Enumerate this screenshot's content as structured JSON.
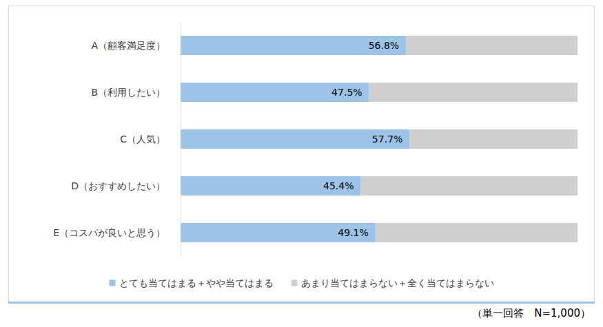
{
  "chart_data": {
    "type": "bar",
    "orientation": "horizontal",
    "stacked": true,
    "categories": [
      "A（顧客満足度）",
      "B（利用したい）",
      "C（人気）",
      "D（おすすめしたい）",
      "E（コスパが良いと思う）"
    ],
    "series": [
      {
        "name": "とても当てはまる＋やや当てはまる",
        "color": "#9dc3e6",
        "values": [
          56.8,
          47.5,
          57.7,
          45.4,
          49.1
        ],
        "value_labels": [
          "56.8%",
          "47.5%",
          "57.7%",
          "45.4%",
          "49.1%"
        ],
        "data_labels": true
      },
      {
        "name": "あまり当てはまらない＋全く当てはまらない",
        "color": "#d0cece",
        "values": [
          43.2,
          52.5,
          42.3,
          54.6,
          50.9
        ],
        "data_labels": false
      }
    ],
    "xlim": [
      0,
      100
    ],
    "tick_labels": "y",
    "grid": false,
    "legend": "bottom",
    "annotations": [
      "（単一回答　N=1,000）"
    ]
  }
}
